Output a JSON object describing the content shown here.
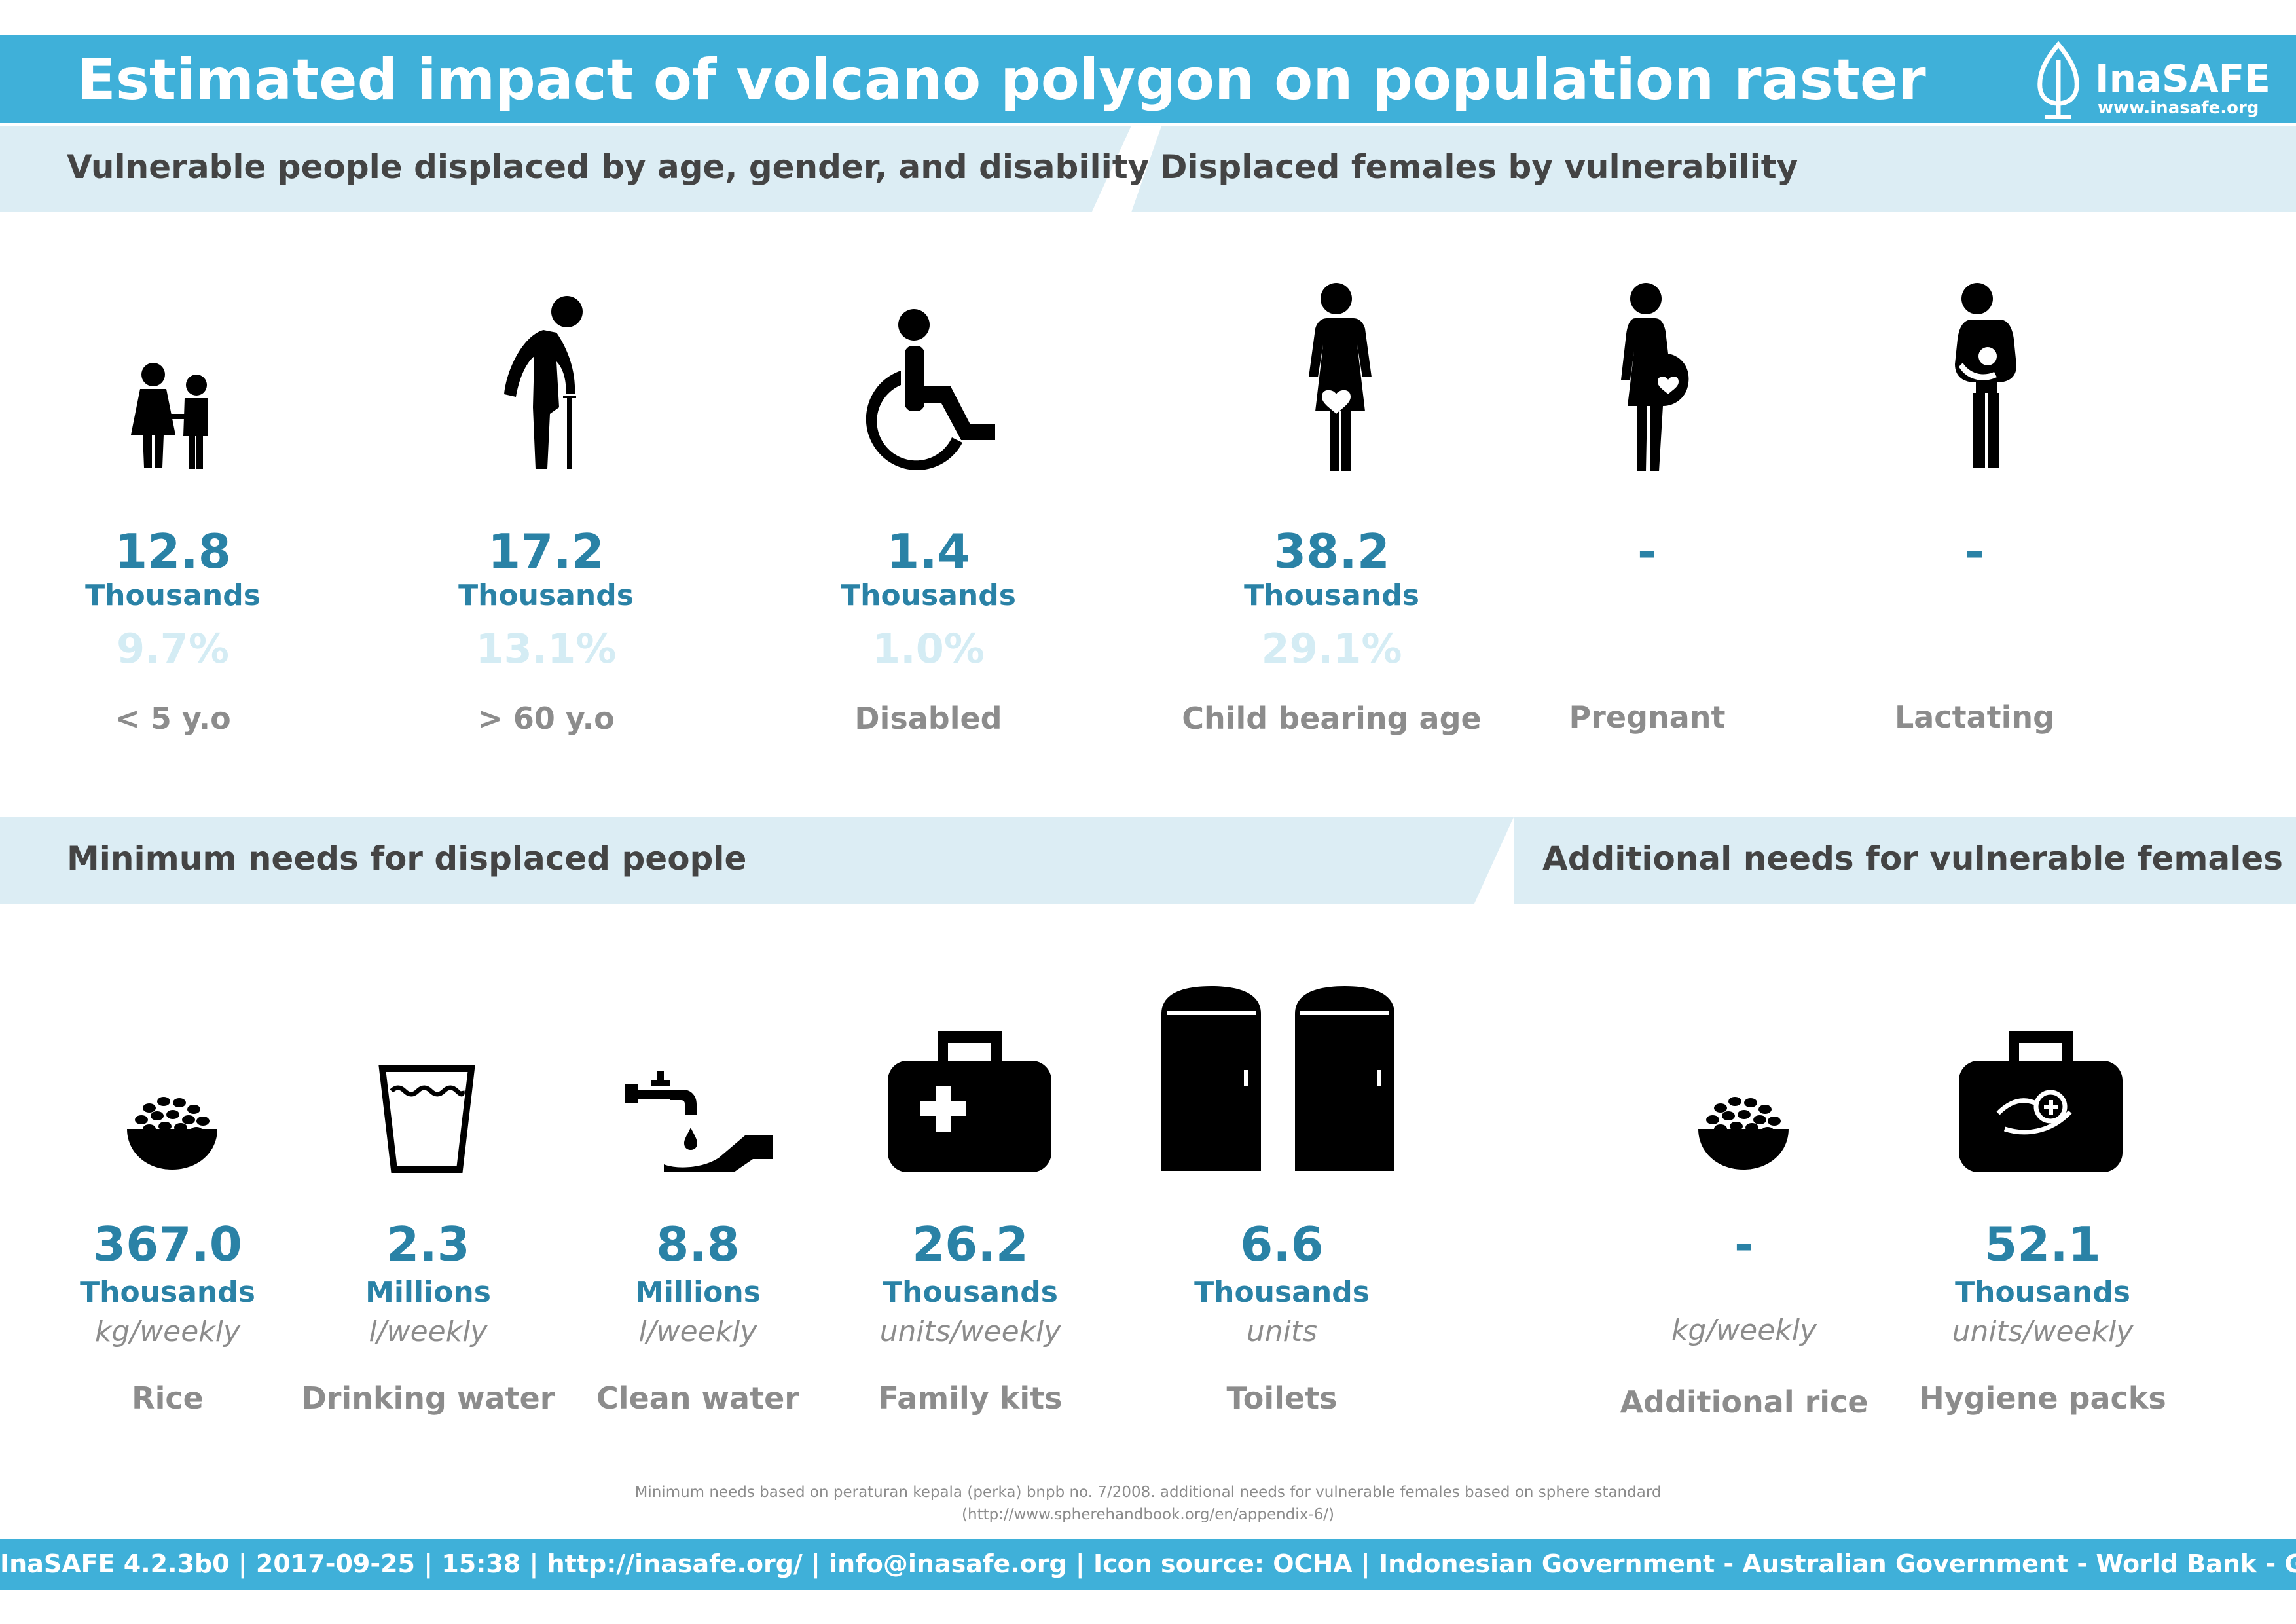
{
  "header": {
    "title": "Estimated impact of volcano polygon on population raster",
    "logo_name": "InaSAFE",
    "logo_url": "www.inasafe.org"
  },
  "sections": {
    "vulnerable": "Vulnerable people displaced by age, gender, and disability",
    "females": "Displaced females by vulnerability",
    "minimum_needs": "Minimum needs for displaced people",
    "additional_needs": "Additional needs for vulnerable females"
  },
  "vulnerable": [
    {
      "icon": "children-icon",
      "value": "12.8",
      "unit": "Thousands",
      "percent": "9.7%",
      "label": "< 5 y.o"
    },
    {
      "icon": "elderly-icon",
      "value": "17.2",
      "unit": "Thousands",
      "percent": "13.1%",
      "label": "> 60 y.o"
    },
    {
      "icon": "wheelchair-icon",
      "value": "1.4",
      "unit": "Thousands",
      "percent": "1.0%",
      "label": "Disabled"
    }
  ],
  "females": [
    {
      "icon": "child-bearing-woman-icon",
      "value": "38.2",
      "unit": "Thousands",
      "percent": "29.1%",
      "label": "Child bearing age"
    },
    {
      "icon": "pregnant-woman-icon",
      "value": "-",
      "unit": "",
      "percent": "",
      "label": "Pregnant"
    },
    {
      "icon": "lactating-woman-icon",
      "value": "-",
      "unit": "",
      "percent": "",
      "label": "Lactating"
    }
  ],
  "minimum_needs": [
    {
      "icon": "rice-bowl-icon",
      "value": "367.0",
      "unit": "Thousands",
      "frequency": "kg/weekly",
      "label": "Rice"
    },
    {
      "icon": "drinking-water-icon",
      "value": "2.3",
      "unit": "Millions",
      "frequency": "l/weekly",
      "label": "Drinking water"
    },
    {
      "icon": "clean-water-icon",
      "value": "8.8",
      "unit": "Millions",
      "frequency": "l/weekly",
      "label": "Clean water"
    },
    {
      "icon": "family-kit-icon",
      "value": "26.2",
      "unit": "Thousands",
      "frequency": "units/weekly",
      "label": "Family kits"
    },
    {
      "icon": "toilets-icon",
      "value": "6.6",
      "unit": "Thousands",
      "frequency": "units",
      "label": "Toilets"
    }
  ],
  "additional_needs": [
    {
      "icon": "rice-bowl-icon",
      "value": "-",
      "unit": "",
      "frequency": "kg/weekly",
      "label": "Additional rice"
    },
    {
      "icon": "hygiene-pack-icon",
      "value": "52.1",
      "unit": "Thousands",
      "frequency": "units/weekly",
      "label": "Hygiene packs"
    }
  ],
  "note": {
    "line1": "Minimum needs based on peraturan kepala (perka) bnpb no. 7/2008. additional needs for vulnerable females based on sphere standard",
    "line2": "(http://www.spherehandbook.org/en/appendix-6/)"
  },
  "footer": {
    "text": "InaSAFE 4.2.3b0 | 2017-09-25 | 15:38 | http://inasafe.org/ | info@inasafe.org | Icon source: OCHA | Indonesian Government - Australian Government - World Bank - GFDRR"
  },
  "colors": {
    "brand": "#3fb0d9",
    "value": "#2a82a6",
    "band": "#dcedf4",
    "percent": "#d4ecf4",
    "label": "#8c8c8c"
  }
}
